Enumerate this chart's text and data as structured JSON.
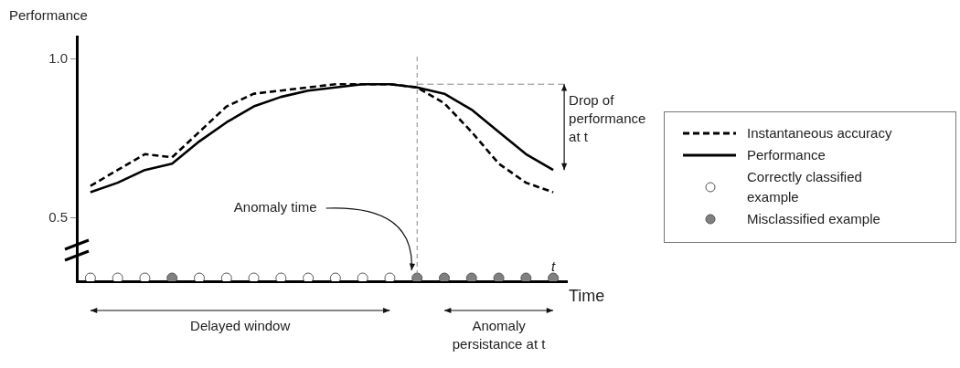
{
  "chart_data": {
    "type": "line",
    "ylabel": "Performance",
    "xlabel": "Time",
    "categories": [
      null,
      null,
      null,
      null,
      null,
      null,
      null,
      null,
      null,
      null,
      null,
      null,
      null,
      null,
      null,
      null,
      null,
      null
    ],
    "ylim": [
      0.3,
      1.07
    ],
    "yticks": [
      0.5,
      {
        "value": 1,
        "label": "1.0"
      }
    ],
    "tick_labels": "y",
    "legend": "right",
    "series": [
      {
        "name": "Instantaneous accuracy",
        "color": "#000000",
        "line_style": "dashed",
        "marker": "none",
        "values": [
          0.6,
          0.65,
          0.7,
          0.69,
          0.77,
          0.85,
          0.89,
          0.9,
          0.91,
          0.92,
          0.92,
          0.92,
          0.91,
          0.86,
          0.77,
          0.67,
          0.61,
          0.58
        ]
      },
      {
        "name": "Performance",
        "color": "#000000",
        "line_style": "solid",
        "marker": "none",
        "values": [
          0.58,
          0.61,
          0.65,
          0.67,
          0.74,
          0.8,
          0.85,
          0.88,
          0.9,
          0.91,
          0.92,
          0.92,
          0.91,
          0.89,
          0.84,
          0.77,
          0.7,
          0.65
        ]
      },
      {
        "name": "Correctly classified example",
        "type": "scatter",
        "color": "#ffffff",
        "marker": "circle",
        "values": [
          0.31,
          0.31,
          0.31,
          null,
          0.31,
          0.31,
          0.31,
          0.31,
          0.31,
          0.31,
          0.31,
          0.31,
          null,
          null,
          null,
          null,
          null,
          null
        ]
      },
      {
        "name": "Misclassified example",
        "type": "scatter",
        "color": "#808080",
        "marker": "circle",
        "values": [
          null,
          null,
          null,
          0.31,
          null,
          null,
          null,
          null,
          null,
          null,
          null,
          null,
          0.31,
          0.31,
          0.31,
          0.31,
          0.31,
          0.31
        ]
      }
    ],
    "ref_lines": [
      {
        "axis": "y",
        "value": 0.92,
        "label": null,
        "color": "#888888",
        "line_style": "dashed"
      }
    ],
    "annotations": [
      "Drop of performance at t",
      "Anomaly time",
      "t",
      "Delayed window",
      "Anomaly persistance at t"
    ]
  }
}
